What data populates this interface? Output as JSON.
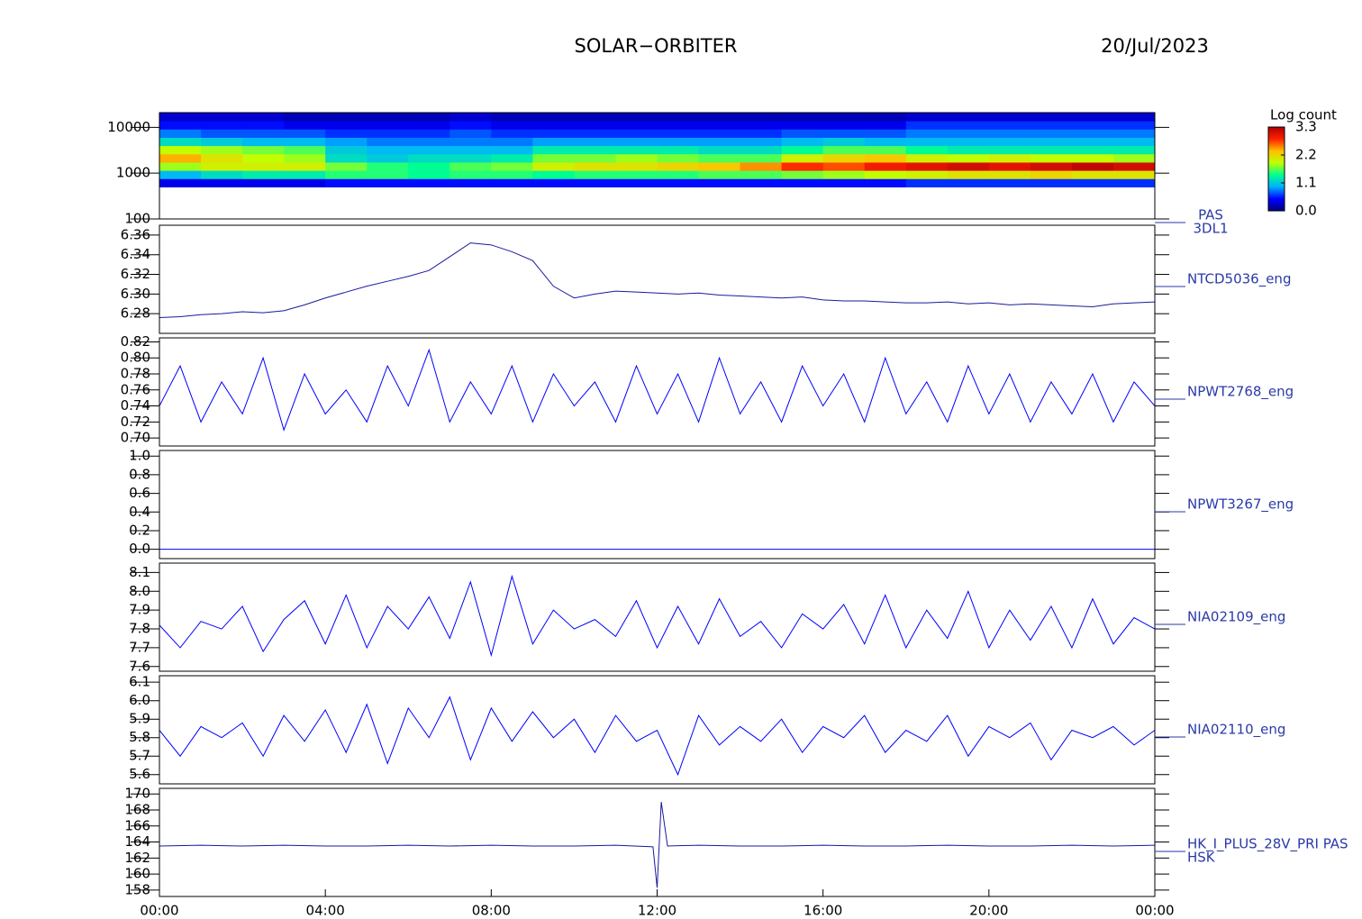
{
  "title": "SOLAR−ORBITER",
  "date": "20/Jul/2023",
  "chart_data": [
    {
      "type": "heatmap",
      "label_lines": [
        "PAS",
        "3DL1"
      ],
      "log_y": true,
      "ylim": [
        100,
        21000
      ],
      "yticks": [
        100,
        1000,
        10000
      ],
      "xlim": [
        0,
        24
      ],
      "xticks": [
        {
          "value": 0,
          "label": "00:00"
        },
        {
          "value": 4,
          "label": "04:00"
        },
        {
          "value": 8,
          "label": "08:00"
        },
        {
          "value": 12,
          "label": "12:00"
        },
        {
          "value": 16,
          "label": "16:00"
        },
        {
          "value": 20,
          "label": "20:00"
        },
        {
          "value": 24,
          "label": "00:00"
        }
      ],
      "x_bins": [
        0,
        1,
        2,
        3,
        4,
        5,
        6,
        7,
        8,
        9,
        10,
        11,
        12,
        13,
        14,
        15,
        16,
        17,
        18,
        19,
        20,
        21,
        22,
        23,
        24
      ],
      "y_bins": [
        500,
        760,
        1150,
        1740,
        2640,
        4000,
        6060,
        9190,
        13900,
        21000
      ],
      "colorbar_label": "Log count",
      "clim": [
        0,
        3.3
      ],
      "clim_ticks": [
        {
          "value": 0,
          "label": "0.0"
        },
        1.1,
        2.2,
        3.3
      ],
      "colorscale": [
        "#000080",
        "#0000ff",
        "#00b0ff",
        "#00ff90",
        "#c0ff00",
        "#ffc000",
        "#ff2000",
        "#b00000"
      ],
      "values": [
        [
          0.4,
          1.0,
          1.8,
          2.4,
          1.9,
          1.2,
          0.8,
          0.5,
          0.3
        ],
        [
          0.4,
          1.2,
          2.0,
          2.1,
          1.8,
          1.1,
          0.7,
          0.5,
          0.3
        ],
        [
          0.4,
          1.3,
          2.0,
          1.9,
          1.7,
          1.0,
          0.7,
          0.5,
          0.3
        ],
        [
          0.4,
          1.3,
          2.0,
          1.8,
          1.6,
          1.0,
          0.7,
          0.4,
          0.2
        ],
        [
          0.5,
          1.5,
          1.7,
          1.2,
          1.1,
          0.9,
          0.6,
          0.4,
          0.2
        ],
        [
          0.5,
          1.5,
          1.5,
          1.1,
          1.0,
          0.8,
          0.6,
          0.4,
          0.2
        ],
        [
          0.5,
          1.4,
          1.4,
          1.2,
          1.0,
          0.8,
          0.6,
          0.4,
          0.2
        ],
        [
          0.5,
          1.5,
          1.6,
          1.2,
          1.0,
          0.8,
          0.7,
          0.5,
          0.3
        ],
        [
          0.5,
          1.5,
          1.7,
          1.3,
          1.0,
          0.8,
          0.6,
          0.4,
          0.2
        ],
        [
          0.5,
          1.4,
          2.0,
          1.7,
          1.3,
          0.9,
          0.6,
          0.4,
          0.2
        ],
        [
          0.5,
          1.5,
          2.1,
          1.7,
          1.3,
          0.9,
          0.6,
          0.4,
          0.2
        ],
        [
          0.5,
          1.5,
          2.1,
          1.8,
          1.3,
          0.9,
          0.6,
          0.4,
          0.2
        ],
        [
          0.5,
          1.5,
          2.2,
          1.7,
          1.3,
          0.9,
          0.6,
          0.4,
          0.2
        ],
        [
          0.5,
          1.6,
          2.3,
          1.6,
          1.2,
          0.9,
          0.6,
          0.4,
          0.2
        ],
        [
          0.5,
          1.6,
          2.5,
          1.6,
          1.2,
          0.9,
          0.6,
          0.4,
          0.2
        ],
        [
          0.5,
          1.7,
          2.8,
          2.0,
          1.4,
          1.0,
          0.7,
          0.4,
          0.2
        ],
        [
          0.5,
          1.8,
          2.7,
          2.2,
          1.6,
          1.1,
          0.7,
          0.4,
          0.2
        ],
        [
          0.5,
          1.9,
          2.9,
          2.3,
          1.6,
          1.0,
          0.7,
          0.4,
          0.2
        ],
        [
          0.6,
          2.0,
          3.0,
          2.0,
          1.4,
          1.0,
          0.8,
          0.6,
          0.3
        ],
        [
          0.6,
          2.1,
          3.1,
          1.9,
          1.3,
          1.0,
          0.8,
          0.6,
          0.3
        ],
        [
          0.6,
          2.1,
          3.0,
          2.0,
          1.3,
          1.0,
          0.8,
          0.6,
          0.3
        ],
        [
          0.6,
          2.2,
          3.1,
          1.9,
          1.3,
          1.0,
          0.8,
          0.6,
          0.3
        ],
        [
          0.6,
          2.1,
          3.2,
          1.9,
          1.3,
          1.0,
          0.8,
          0.6,
          0.3
        ],
        [
          0.6,
          2.1,
          3.1,
          1.8,
          1.3,
          1.0,
          0.8,
          0.6,
          0.3
        ]
      ]
    },
    {
      "type": "line",
      "label_lines": [
        "NTCD5036_eng"
      ],
      "ylim": [
        6.26,
        6.37
      ],
      "yticks": [
        6.28,
        {
          "value": 6.3,
          "label": "6.30"
        },
        6.32,
        6.34,
        6.36
      ],
      "xlim": [
        0,
        24
      ],
      "x": [
        0,
        0.5,
        1,
        1.5,
        2,
        2.5,
        3,
        3.5,
        4,
        4.5,
        5,
        5.5,
        6,
        6.5,
        7,
        7.5,
        8,
        8.5,
        9,
        9.5,
        10,
        10.5,
        11,
        11.5,
        12,
        12.5,
        13,
        13.5,
        14,
        14.5,
        15,
        15.5,
        16,
        16.5,
        17,
        17.5,
        18,
        18.5,
        19,
        19.5,
        20,
        20.5,
        21,
        21.5,
        22,
        22.5,
        23,
        23.5,
        24
      ],
      "series": [
        {
          "color": "#1a1a9a",
          "values": [
            6.276,
            6.277,
            6.279,
            6.28,
            6.282,
            6.281,
            6.283,
            6.289,
            6.296,
            6.302,
            6.308,
            6.313,
            6.318,
            6.324,
            6.338,
            6.352,
            6.35,
            6.343,
            6.334,
            6.308,
            6.296,
            6.3,
            6.303,
            6.302,
            6.301,
            6.3,
            6.301,
            6.299,
            6.298,
            6.297,
            6.296,
            6.297,
            6.294,
            6.293,
            6.293,
            6.292,
            6.291,
            6.291,
            6.292,
            6.29,
            6.291,
            6.289,
            6.29,
            6.289,
            6.288,
            6.287,
            6.29,
            6.291,
            6.292
          ]
        }
      ]
    },
    {
      "type": "line",
      "label_lines": [
        "NPWT2768_eng"
      ],
      "ylim": [
        0.69,
        0.825
      ],
      "yticks": [
        {
          "value": 0.7,
          "label": "0.70"
        },
        0.72,
        0.74,
        0.76,
        0.78,
        {
          "value": 0.8,
          "label": "0.80"
        },
        0.82
      ],
      "xlim": [
        0,
        24
      ],
      "x": [
        0,
        0.5,
        1,
        1.5,
        2,
        2.5,
        3,
        3.5,
        4,
        4.5,
        5,
        5.5,
        6,
        6.5,
        7,
        7.5,
        8,
        8.5,
        9,
        9.5,
        10,
        10.5,
        11,
        11.5,
        12,
        12.5,
        13,
        13.5,
        14,
        14.5,
        15,
        15.5,
        16,
        16.5,
        17,
        17.5,
        18,
        18.5,
        19,
        19.5,
        20,
        20.5,
        21,
        21.5,
        22,
        22.5,
        23,
        23.5,
        24
      ],
      "series": [
        {
          "color": "#0000ff",
          "values": [
            0.74,
            0.79,
            0.72,
            0.77,
            0.73,
            0.8,
            0.71,
            0.78,
            0.73,
            0.76,
            0.72,
            0.79,
            0.74,
            0.81,
            0.72,
            0.77,
            0.73,
            0.79,
            0.72,
            0.78,
            0.74,
            0.77,
            0.72,
            0.79,
            0.73,
            0.78,
            0.72,
            0.8,
            0.73,
            0.77,
            0.72,
            0.79,
            0.74,
            0.78,
            0.72,
            0.8,
            0.73,
            0.77,
            0.72,
            0.79,
            0.73,
            0.78,
            0.72,
            0.77,
            0.73,
            0.78,
            0.72,
            0.77,
            0.74
          ]
        }
      ]
    },
    {
      "type": "line",
      "label_lines": [
        "NPWT3267_eng"
      ],
      "ylim": [
        -0.1,
        1.06
      ],
      "yticks": [
        {
          "value": 0,
          "label": "0.0"
        },
        0.2,
        0.4,
        0.6,
        0.8,
        {
          "value": 1,
          "label": "1.0"
        }
      ],
      "xlim": [
        0,
        24
      ],
      "x": [
        0,
        0.5,
        1,
        1.5,
        2,
        2.5,
        3,
        3.5,
        4,
        4.5,
        5,
        5.5,
        6,
        6.5,
        7,
        7.5,
        8,
        8.5,
        9,
        9.5,
        10,
        10.5,
        11,
        11.5,
        12,
        12.5,
        13,
        13.5,
        14,
        14.5,
        15,
        15.5,
        16,
        16.5,
        17,
        17.5,
        18,
        18.5,
        19,
        19.5,
        20,
        20.5,
        21,
        21.5,
        22,
        22.5,
        23,
        23.5,
        24
      ],
      "series": [
        {
          "color": "#0000ff",
          "values": [
            0,
            0,
            0,
            0,
            0,
            0,
            0,
            0,
            0,
            0,
            0,
            0,
            0,
            0,
            0,
            0,
            0,
            0,
            0,
            0,
            0,
            0,
            0,
            0,
            0,
            0,
            0,
            0,
            0,
            0,
            0,
            0,
            0,
            0,
            0,
            0,
            0,
            0,
            0,
            0,
            0,
            0,
            0,
            0,
            0,
            0,
            0,
            0,
            0
          ]
        }
      ]
    },
    {
      "type": "line",
      "label_lines": [
        "NIA02109_eng"
      ],
      "ylim": [
        7.575,
        8.15
      ],
      "yticks": [
        7.6,
        7.7,
        7.8,
        7.9,
        {
          "value": 8,
          "label": "8.0"
        },
        8.1
      ],
      "xlim": [
        0,
        24
      ],
      "x": [
        0,
        0.5,
        1,
        1.5,
        2,
        2.5,
        3,
        3.5,
        4,
        4.5,
        5,
        5.5,
        6,
        6.5,
        7,
        7.5,
        8,
        8.5,
        9,
        9.5,
        10,
        10.5,
        11,
        11.5,
        12,
        12.5,
        13,
        13.5,
        14,
        14.5,
        15,
        15.5,
        16,
        16.5,
        17,
        17.5,
        18,
        18.5,
        19,
        19.5,
        20,
        20.5,
        21,
        21.5,
        22,
        22.5,
        23,
        23.5,
        24
      ],
      "series": [
        {
          "color": "#0000ff",
          "values": [
            7.82,
            7.7,
            7.84,
            7.8,
            7.92,
            7.68,
            7.85,
            7.95,
            7.72,
            7.98,
            7.7,
            7.92,
            7.8,
            7.97,
            7.75,
            8.05,
            7.66,
            8.08,
            7.72,
            7.9,
            7.8,
            7.85,
            7.76,
            7.95,
            7.7,
            7.92,
            7.72,
            7.96,
            7.76,
            7.84,
            7.7,
            7.88,
            7.8,
            7.93,
            7.72,
            7.98,
            7.7,
            7.9,
            7.75,
            8.0,
            7.7,
            7.9,
            7.74,
            7.92,
            7.7,
            7.96,
            7.72,
            7.86,
            7.8
          ]
        }
      ]
    },
    {
      "type": "line",
      "label_lines": [
        "NIA02110_eng"
      ],
      "ylim": [
        5.55,
        6.135
      ],
      "yticks": [
        5.6,
        5.7,
        5.8,
        5.9,
        {
          "value": 6,
          "label": "6.0"
        },
        6.1
      ],
      "xlim": [
        0,
        24
      ],
      "x": [
        0,
        0.5,
        1,
        1.5,
        2,
        2.5,
        3,
        3.5,
        4,
        4.5,
        5,
        5.5,
        6,
        6.5,
        7,
        7.5,
        8,
        8.5,
        9,
        9.5,
        10,
        10.5,
        11,
        11.5,
        12,
        12.5,
        13,
        13.5,
        14,
        14.5,
        15,
        15.5,
        16,
        16.5,
        17,
        17.5,
        18,
        18.5,
        19,
        19.5,
        20,
        20.5,
        21,
        21.5,
        22,
        22.5,
        23,
        23.5,
        24
      ],
      "series": [
        {
          "color": "#0000ff",
          "values": [
            5.84,
            5.7,
            5.86,
            5.8,
            5.88,
            5.7,
            5.92,
            5.78,
            5.95,
            5.72,
            5.98,
            5.66,
            5.96,
            5.8,
            6.02,
            5.68,
            5.96,
            5.78,
            5.94,
            5.8,
            5.9,
            5.72,
            5.92,
            5.78,
            5.84,
            5.6,
            5.92,
            5.76,
            5.86,
            5.78,
            5.9,
            5.72,
            5.86,
            5.8,
            5.92,
            5.72,
            5.84,
            5.78,
            5.92,
            5.7,
            5.86,
            5.8,
            5.88,
            5.68,
            5.84,
            5.8,
            5.86,
            5.76,
            5.84
          ]
        }
      ]
    },
    {
      "type": "line",
      "label_lines": [
        "HK_I_PLUS_28V_PRI PAS",
        "HSK"
      ],
      "ylim": [
        157.2,
        170.7
      ],
      "yticks": [
        158,
        160,
        162,
        164,
        166,
        168,
        170
      ],
      "xlim": [
        0,
        24
      ],
      "x": [
        0,
        1,
        2,
        3,
        4,
        5,
        6,
        7,
        8,
        9,
        10,
        11,
        11.9,
        12,
        12.1,
        12.25,
        13,
        14,
        15,
        16,
        17,
        18,
        19,
        20,
        21,
        22,
        23,
        24
      ],
      "series": [
        {
          "color": "#1a1a9a",
          "values": [
            163.5,
            163.6,
            163.5,
            163.6,
            163.5,
            163.5,
            163.6,
            163.5,
            163.6,
            163.5,
            163.5,
            163.6,
            163.4,
            158.3,
            169.0,
            163.5,
            163.6,
            163.5,
            163.5,
            163.6,
            163.5,
            163.5,
            163.6,
            163.5,
            163.5,
            163.6,
            163.5,
            163.6
          ]
        }
      ]
    }
  ]
}
